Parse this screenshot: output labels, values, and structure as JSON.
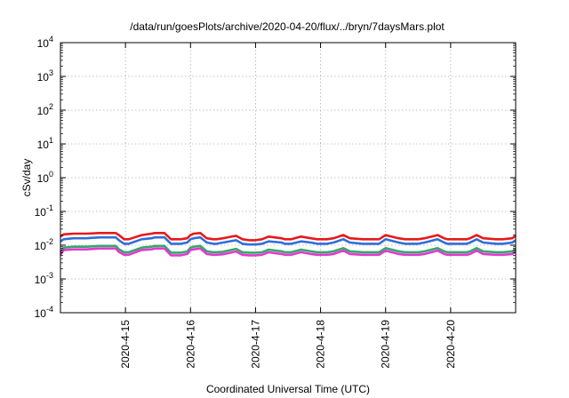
{
  "chart_data": {
    "type": "line",
    "title": "/data/run/goesPlots/archive/2020-04-20/flux/../bryn/7daysMars.plot",
    "xlabel": "Coordinated Universal Time (UTC)",
    "ylabel": "cSv/day",
    "yscale": "log",
    "ylim": [
      0.0001,
      10000
    ],
    "xlim": [
      "2020-04-14T00:00",
      "2020-04-21T00:00"
    ],
    "grid": true,
    "y_ticks": [
      {
        "base": "10",
        "exp": "-4"
      },
      {
        "base": "10",
        "exp": "-3"
      },
      {
        "base": "10",
        "exp": "-2"
      },
      {
        "base": "10",
        "exp": "-1"
      },
      {
        "base": "10",
        "exp": "0"
      },
      {
        "base": "10",
        "exp": "1"
      },
      {
        "base": "10",
        "exp": "2"
      },
      {
        "base": "10",
        "exp": "3"
      },
      {
        "base": "10",
        "exp": "4"
      }
    ],
    "x_ticks": [
      "2020-4-15",
      "2020-4-16",
      "2020-4-17",
      "2020-4-18",
      "2020-4-19",
      "2020-4-20"
    ],
    "x": [
      "2020-04-14T00:00",
      "2020-04-14T01:12",
      "2020-04-14T04:48",
      "2020-04-14T09:36",
      "2020-04-14T14:24",
      "2020-04-14T16:48",
      "2020-04-14T19:12",
      "2020-04-14T20:24",
      "2020-04-14T21:36",
      "2020-04-14T23:31",
      "2020-04-15T01:12",
      "2020-04-15T06:00",
      "2020-04-15T09:36",
      "2020-04-15T10:48",
      "2020-04-15T12:00",
      "2020-04-15T14:24",
      "2020-04-15T16:48",
      "2020-04-15T20:24",
      "2020-04-15T22:48",
      "2020-04-16T00:00",
      "2020-04-16T01:12",
      "2020-04-16T03:36",
      "2020-04-16T06:00",
      "2020-04-16T08:24",
      "2020-04-16T09:36",
      "2020-04-16T12:00",
      "2020-04-16T16:48",
      "2020-04-16T19:12",
      "2020-04-16T21:36",
      "2020-04-17T00:00",
      "2020-04-17T02:24",
      "2020-04-17T04:48",
      "2020-04-17T09:36",
      "2020-04-17T10:48",
      "2020-04-17T13:12",
      "2020-04-17T16:48",
      "2020-04-17T20:24",
      "2020-04-17T22:48",
      "2020-04-18T00:00",
      "2020-04-18T01:12",
      "2020-04-18T02:24",
      "2020-04-18T04:48",
      "2020-04-18T08:24",
      "2020-04-18T10:48",
      "2020-04-18T15:36",
      "2020-04-18T16:48",
      "2020-04-18T21:36",
      "2020-04-19T00:00",
      "2020-04-19T04:48",
      "2020-04-19T07:12",
      "2020-04-19T09:36",
      "2020-04-19T10:48",
      "2020-04-19T12:00",
      "2020-04-19T14:24",
      "2020-04-19T19:12",
      "2020-04-19T21:36",
      "2020-04-19T22:48",
      "2020-04-20T02:24",
      "2020-04-20T06:00",
      "2020-04-20T07:12",
      "2020-04-20T09:36",
      "2020-04-20T12:00",
      "2020-04-20T16:48",
      "2020-04-20T19:12",
      "2020-04-20T22:48",
      "2020-04-21T00:00"
    ],
    "series": [
      {
        "color": "#e41a1c",
        "values": [
          0.018,
          0.021,
          0.022,
          0.022,
          0.023,
          0.023,
          0.023,
          0.023,
          0.02,
          0.015,
          0.015,
          0.02,
          0.022,
          0.023,
          0.023,
          0.023,
          0.015,
          0.015,
          0.016,
          0.02,
          0.022,
          0.023,
          0.016,
          0.015,
          0.015,
          0.016,
          0.019,
          0.015,
          0.014,
          0.014,
          0.015,
          0.018,
          0.016,
          0.015,
          0.015,
          0.018,
          0.016,
          0.015,
          0.015,
          0.015,
          0.015,
          0.016,
          0.02,
          0.016,
          0.015,
          0.015,
          0.015,
          0.02,
          0.016,
          0.015,
          0.015,
          0.015,
          0.015,
          0.016,
          0.02,
          0.016,
          0.015,
          0.015,
          0.015,
          0.016,
          0.02,
          0.016,
          0.015,
          0.015,
          0.016,
          0.019
        ]
      },
      {
        "color": "#2f6fd6",
        "values": [
          0.013,
          0.015,
          0.016,
          0.016,
          0.017,
          0.017,
          0.017,
          0.017,
          0.014,
          0.011,
          0.011,
          0.015,
          0.016,
          0.017,
          0.017,
          0.017,
          0.011,
          0.011,
          0.012,
          0.015,
          0.016,
          0.017,
          0.012,
          0.011,
          0.011,
          0.012,
          0.014,
          0.011,
          0.0105,
          0.0105,
          0.011,
          0.013,
          0.012,
          0.011,
          0.011,
          0.013,
          0.012,
          0.011,
          0.011,
          0.011,
          0.011,
          0.012,
          0.015,
          0.012,
          0.011,
          0.011,
          0.011,
          0.015,
          0.012,
          0.011,
          0.011,
          0.011,
          0.011,
          0.012,
          0.015,
          0.012,
          0.011,
          0.011,
          0.011,
          0.012,
          0.015,
          0.012,
          0.011,
          0.011,
          0.012,
          0.014
        ]
      },
      {
        "color": "#35a86b",
        "values": [
          0.0062,
          0.0085,
          0.009,
          0.009,
          0.0095,
          0.0095,
          0.0095,
          0.0095,
          0.0075,
          0.0062,
          0.0062,
          0.0085,
          0.009,
          0.0095,
          0.0095,
          0.0095,
          0.006,
          0.006,
          0.0065,
          0.0085,
          0.009,
          0.0095,
          0.0066,
          0.0062,
          0.0062,
          0.0064,
          0.0078,
          0.0062,
          0.006,
          0.006,
          0.0062,
          0.0074,
          0.0066,
          0.0062,
          0.0062,
          0.0074,
          0.0066,
          0.0062,
          0.0062,
          0.0062,
          0.0062,
          0.0066,
          0.0082,
          0.0066,
          0.0062,
          0.0062,
          0.0062,
          0.0082,
          0.0066,
          0.0062,
          0.0062,
          0.0062,
          0.0062,
          0.0066,
          0.0082,
          0.0066,
          0.0062,
          0.0062,
          0.0062,
          0.0066,
          0.0082,
          0.0066,
          0.0062,
          0.0062,
          0.0066,
          0.0078
        ]
      },
      {
        "color": "#e23ad0",
        "values": [
          0.0052,
          0.0072,
          0.0075,
          0.0075,
          0.008,
          0.008,
          0.008,
          0.008,
          0.0063,
          0.0052,
          0.0052,
          0.0072,
          0.0075,
          0.008,
          0.008,
          0.008,
          0.005,
          0.005,
          0.0055,
          0.0072,
          0.0075,
          0.008,
          0.0055,
          0.0052,
          0.0052,
          0.0054,
          0.0065,
          0.0052,
          0.005,
          0.005,
          0.0052,
          0.0062,
          0.0055,
          0.0052,
          0.0052,
          0.0062,
          0.0055,
          0.0052,
          0.0052,
          0.0052,
          0.0052,
          0.0055,
          0.0069,
          0.0055,
          0.0052,
          0.0052,
          0.0052,
          0.0069,
          0.0055,
          0.0052,
          0.0052,
          0.0052,
          0.0052,
          0.0055,
          0.0069,
          0.0055,
          0.0052,
          0.0052,
          0.0052,
          0.0055,
          0.0069,
          0.0055,
          0.0052,
          0.0052,
          0.0055,
          0.0065
        ]
      }
    ]
  }
}
